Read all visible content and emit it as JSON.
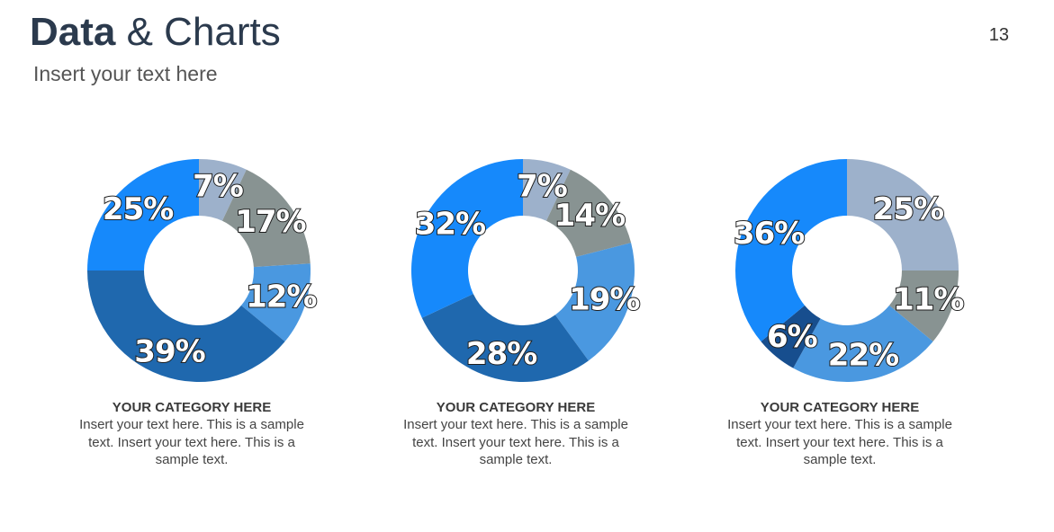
{
  "header": {
    "title_bold": "Data",
    "title_rest": "& Charts",
    "subtitle": "Insert your text here",
    "page_number": "13"
  },
  "colors": {
    "light_gray_blue": "#9db1cb",
    "gray": "#889392",
    "light_blue": "#4a98e0",
    "dark_blue": "#1f68ae",
    "bright_blue": "#1689fb",
    "navy": "#174e8e"
  },
  "chart_data": [
    {
      "type": "pie",
      "variant": "donut",
      "title": "",
      "slices": [
        {
          "label": "7%",
          "value": 7,
          "color": "#9db1cb"
        },
        {
          "label": "17%",
          "value": 17,
          "color": "#889392"
        },
        {
          "label": "12%",
          "value": 12,
          "color": "#4a98e0"
        },
        {
          "label": "39%",
          "value": 39,
          "color": "#1f68ae"
        },
        {
          "label": "25%",
          "value": 25,
          "color": "#1689fb"
        }
      ],
      "caption_title": "YOUR CATEGORY HERE",
      "caption_text": "Insert your text here. This is a sample text. Insert your text here. This is a sample text."
    },
    {
      "type": "pie",
      "variant": "donut",
      "title": "",
      "slices": [
        {
          "label": "7%",
          "value": 7,
          "color": "#9db1cb"
        },
        {
          "label": "14%",
          "value": 14,
          "color": "#889392"
        },
        {
          "label": "19%",
          "value": 19,
          "color": "#4a98e0"
        },
        {
          "label": "28%",
          "value": 28,
          "color": "#1f68ae"
        },
        {
          "label": "32%",
          "value": 32,
          "color": "#1689fb"
        }
      ],
      "caption_title": "YOUR CATEGORY HERE",
      "caption_text": "Insert your text here. This is a sample text. Insert your text here. This is a sample text."
    },
    {
      "type": "pie",
      "variant": "donut",
      "title": "",
      "slices": [
        {
          "label": "25%",
          "value": 25,
          "color": "#9db1cb"
        },
        {
          "label": "11%",
          "value": 11,
          "color": "#889392"
        },
        {
          "label": "22%",
          "value": 22,
          "color": "#4a98e0"
        },
        {
          "label": "6%",
          "value": 6,
          "color": "#174e8e"
        },
        {
          "label": "36%",
          "value": 36,
          "color": "#1689fb"
        }
      ],
      "caption_title": "YOUR CATEGORY HERE",
      "caption_text": "Insert your text here. This is a sample text. Insert your text here. This is a sample text."
    }
  ]
}
